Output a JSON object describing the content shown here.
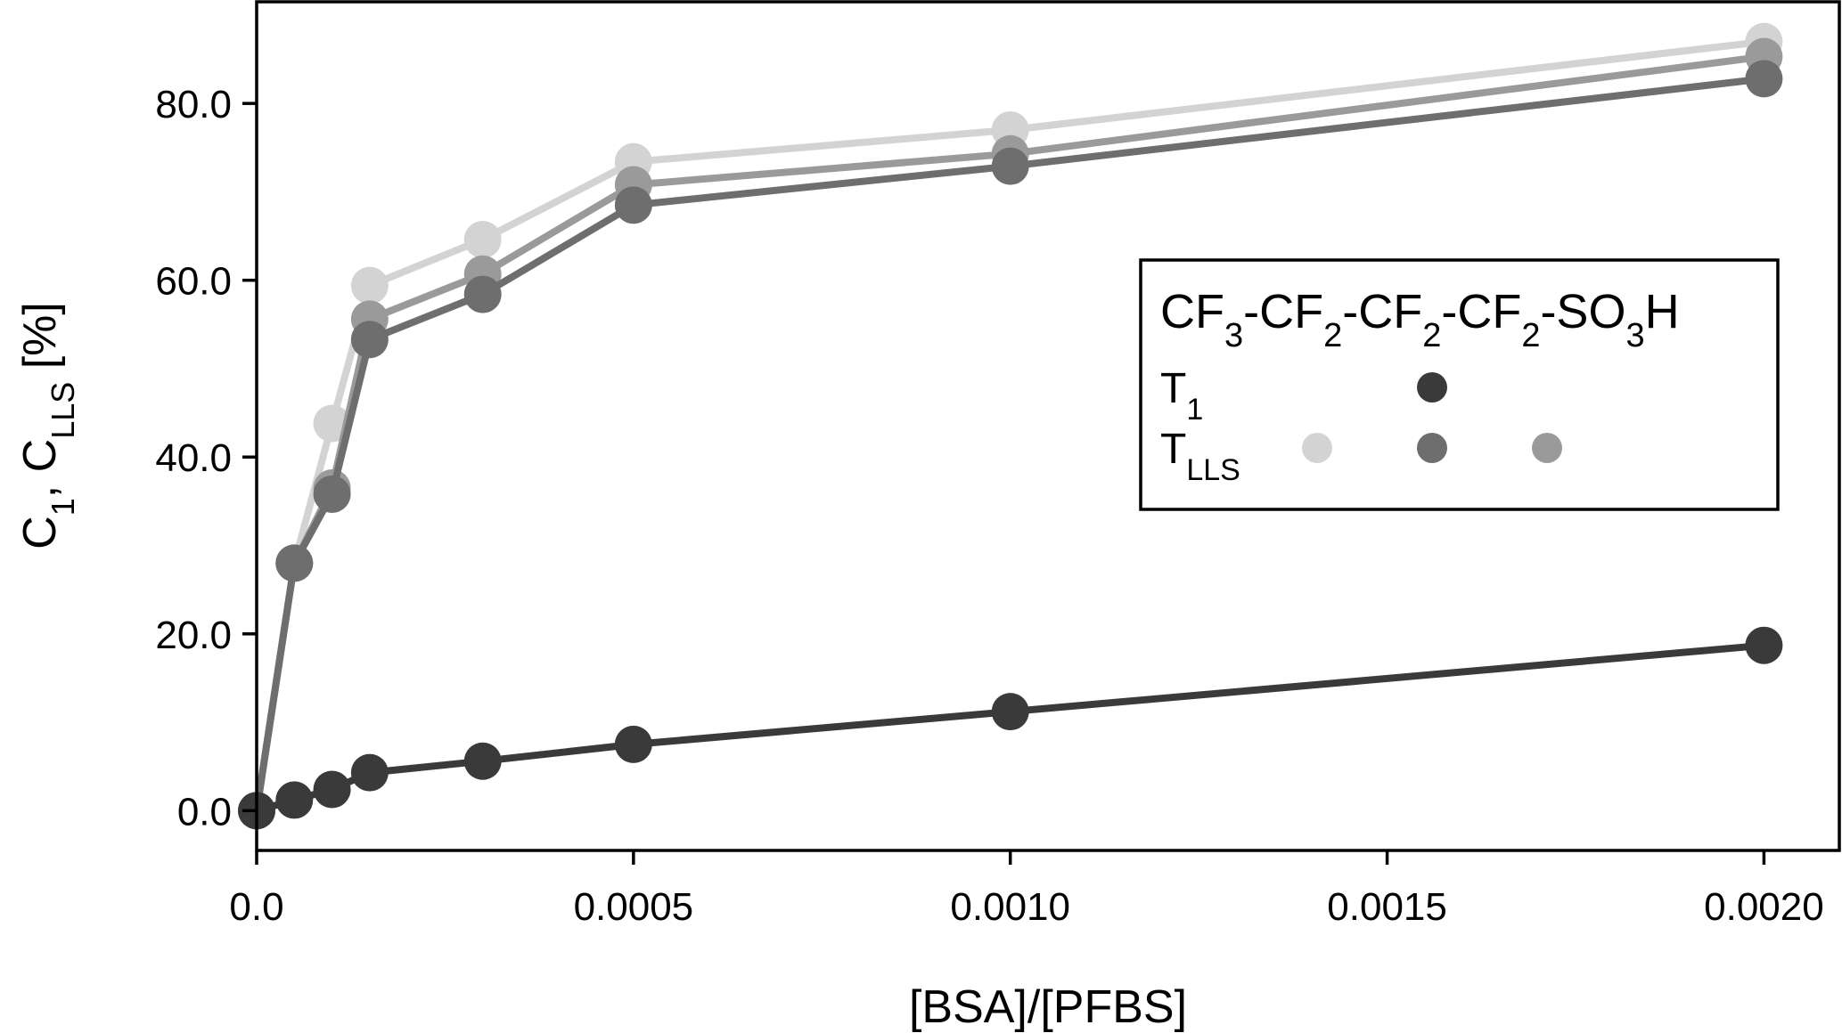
{
  "chart_data": {
    "type": "line",
    "x": [
      0.0,
      5e-05,
      0.0001,
      0.00015,
      0.0003,
      0.0005,
      0.001,
      0.002
    ],
    "series": [
      {
        "name": "T_LLS (light)",
        "color": "#d3d3d3",
        "values": [
          0.0,
          28.0,
          43.8,
          59.4,
          64.6,
          73.4,
          77.0,
          87.0
        ]
      },
      {
        "name": "T_LLS (medium)",
        "color": "#9a9a9a",
        "values": [
          0.0,
          28.0,
          36.5,
          55.6,
          60.7,
          70.8,
          74.3,
          85.3
        ]
      },
      {
        "name": "T_LLS (dark)",
        "color": "#6e6e6e",
        "values": [
          0.0,
          28.0,
          35.8,
          53.3,
          58.4,
          68.5,
          72.9,
          82.8
        ]
      },
      {
        "name": "T_1",
        "color": "#3a3a3a",
        "values": [
          0.0,
          1.2,
          2.4,
          4.3,
          5.6,
          7.5,
          11.2,
          18.7
        ]
      }
    ],
    "xlabel": "[BSA]/[PFBS]",
    "ylabel": {
      "main1": "C",
      "sub1": "1",
      "sep": ", C",
      "sub2": "LLS",
      "unit": " [%]"
    },
    "xlim": [
      0.0,
      0.0021
    ],
    "ylim": [
      -4.5,
      91.5
    ],
    "xticks": [
      0.0,
      0.0005,
      0.001,
      0.0015,
      0.002
    ],
    "xtick_labels": [
      "0.0",
      "0.0005",
      "0.0010",
      "0.0015",
      "0.0020"
    ],
    "yticks": [
      0,
      20,
      40,
      60,
      80
    ],
    "ytick_labels": [
      "0.0",
      "20.0",
      "40.0",
      "60.0",
      "80.0"
    ],
    "grid": false,
    "legend": {
      "placement": "center-right",
      "title": "CF3-CF2-CF2-CF2-SO3H",
      "title_parts": [
        {
          "t": "CF",
          "sub": false
        },
        {
          "t": "3",
          "sub": true
        },
        {
          "t": "-CF",
          "sub": false
        },
        {
          "t": "2",
          "sub": true
        },
        {
          "t": "-CF",
          "sub": false
        },
        {
          "t": "2",
          "sub": true
        },
        {
          "t": "-CF",
          "sub": false
        },
        {
          "t": "2",
          "sub": true
        },
        {
          "t": "-SO",
          "sub": false
        },
        {
          "t": "3",
          "sub": true
        },
        {
          "t": "H",
          "sub": false
        }
      ],
      "rows": [
        {
          "label": "T",
          "sub": "1",
          "markers": [
            "#3a3a3a"
          ]
        },
        {
          "label": "T",
          "sub": "LLS",
          "markers": [
            "#d3d3d3",
            "#6e6e6e",
            "#9a9a9a"
          ]
        }
      ]
    }
  }
}
